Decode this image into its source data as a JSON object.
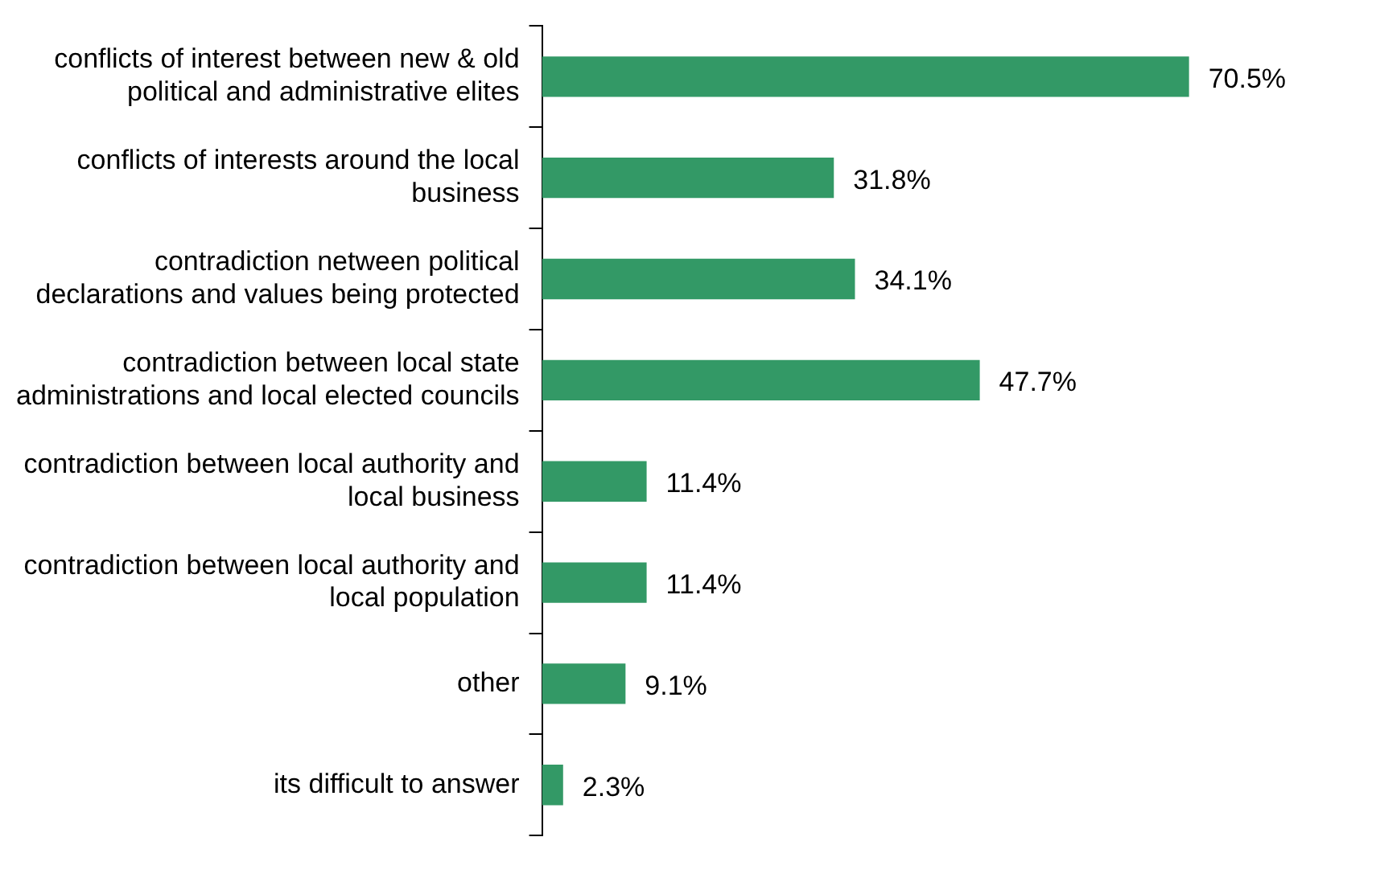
{
  "chart_data": {
    "type": "bar",
    "orientation": "horizontal",
    "categories": [
      "conflicts of interest between new & old political and administrative elites",
      "conflicts of interests around the local business",
      "contradiction netween political declarations and values being protected",
      "contradiction between local state administrations and local elected councils",
      "contradiction between local authority and local business",
      "contradiction between local authority and local population",
      "other",
      "its difficult to answer"
    ],
    "values": [
      70.5,
      31.8,
      34.1,
      47.7,
      11.4,
      11.4,
      9.1,
      2.3
    ],
    "value_labels": [
      "70.5%",
      "31.8%",
      "34.1%",
      "47.7%",
      "11.4%",
      "11.4%",
      "9.1%",
      "2.3%"
    ],
    "color": "#339966",
    "legend": false
  }
}
